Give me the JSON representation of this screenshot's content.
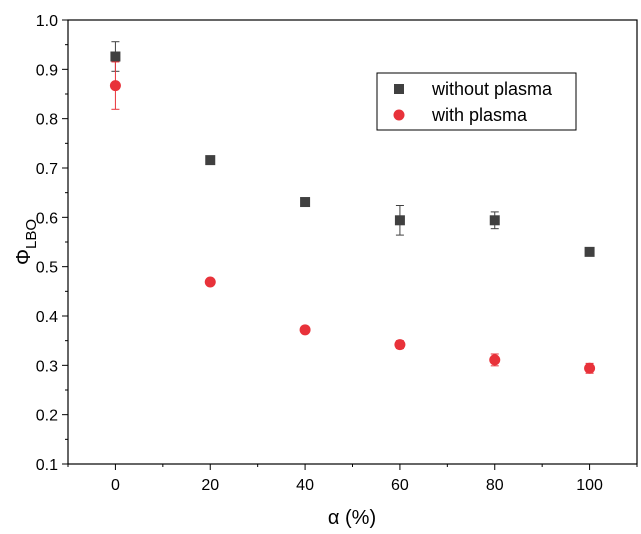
{
  "chart_data": {
    "type": "scatter",
    "title": "",
    "xlabel": "α (%)",
    "ylabel": {
      "main": "Φ",
      "subscript": "LBO"
    },
    "xlim": [
      -10,
      110
    ],
    "ylim": [
      0.1,
      1.0
    ],
    "xticks": [
      "0",
      "20",
      "40",
      "60",
      "80",
      "100"
    ],
    "yticks": [
      "0.1",
      "0.2",
      "0.3",
      "0.4",
      "0.5",
      "0.6",
      "0.7",
      "0.8",
      "0.9",
      "1.0"
    ],
    "grid": false,
    "legend_position": "top-right",
    "series": [
      {
        "name": "without plasma",
        "marker": "square",
        "color": "#404040",
        "points": [
          {
            "x": 0,
            "y": 0.926,
            "err": 0.03
          },
          {
            "x": 20,
            "y": 0.716,
            "err": 0.006
          },
          {
            "x": 40,
            "y": 0.631,
            "err": 0.006
          },
          {
            "x": 60,
            "y": 0.594,
            "err": 0.03
          },
          {
            "x": 80,
            "y": 0.594,
            "err": 0.017
          },
          {
            "x": 100,
            "y": 0.53,
            "err": 0.006
          }
        ]
      },
      {
        "name": "with plasma",
        "marker": "circle",
        "color": "#e8323a",
        "points": [
          {
            "x": 0,
            "y": 0.867,
            "err": 0.048
          },
          {
            "x": 20,
            "y": 0.469,
            "err": 0.006
          },
          {
            "x": 40,
            "y": 0.372,
            "err": 0.006
          },
          {
            "x": 60,
            "y": 0.342,
            "err": 0.008
          },
          {
            "x": 80,
            "y": 0.311,
            "err": 0.012
          },
          {
            "x": 100,
            "y": 0.294,
            "err": 0.01
          }
        ]
      }
    ]
  }
}
